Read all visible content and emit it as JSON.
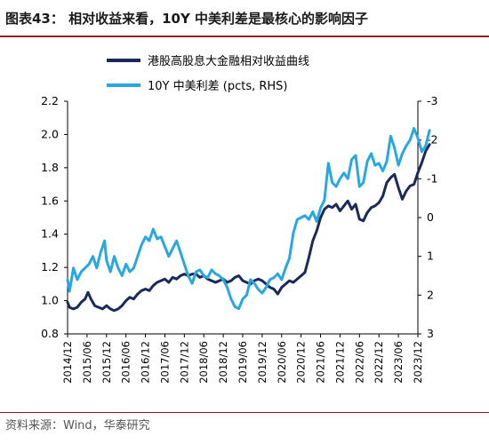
{
  "header": {
    "title": "图表43：  相对收益来看，10Y 中美利差是最核心的影响因子"
  },
  "footer": {
    "source": "资料来源：Wind，华泰研究"
  },
  "colors": {
    "accent": "#8c1b1b",
    "series_primary": "#1a2a5a",
    "series_secondary": "#29a8e0"
  },
  "chart_data": {
    "type": "line",
    "title": "",
    "xlabel": "",
    "ylabel": "",
    "x_tick_labels": [
      "2014/12",
      "2015/06",
      "2015/12",
      "2016/06",
      "2016/12",
      "2017/06",
      "2017/12",
      "2018/06",
      "2018/12",
      "2019/06",
      "2019/12",
      "2020/06",
      "2020/12",
      "2021/06",
      "2021/12",
      "2022/06",
      "2022/12",
      "2023/06",
      "2023/12"
    ],
    "y_left": {
      "lim": [
        0.8,
        2.2
      ],
      "ticks": [
        "0.8",
        "1.0",
        "1.2",
        "1.4",
        "1.6",
        "1.8",
        "2.0",
        "2.2"
      ]
    },
    "y_right": {
      "lim": [
        3,
        -3
      ],
      "inverted": true,
      "ticks": [
        "3",
        "2",
        "1",
        "0",
        "-1",
        "-2",
        "-3"
      ],
      "label": ""
    },
    "legend": {
      "placement": "top-center"
    },
    "grid": false,
    "series": [
      {
        "name": "港股高股息大金融相对收益曲线",
        "axis": "left",
        "color": "#1a2a5a",
        "x": [
          0.0,
          0.1,
          0.3,
          0.5,
          0.7,
          0.9,
          1.05,
          1.2,
          1.4,
          1.6,
          1.8,
          2.0,
          2.2,
          2.4,
          2.6,
          2.8,
          3.0,
          3.2,
          3.4,
          3.6,
          3.8,
          4.0,
          4.2,
          4.4,
          4.6,
          4.8,
          5.0,
          5.2,
          5.4,
          5.6,
          5.8,
          6.0,
          6.2,
          6.4,
          6.6,
          6.8,
          7.0,
          7.2,
          7.4,
          7.6,
          7.8,
          8.0,
          8.2,
          8.4,
          8.6,
          8.8,
          9.0,
          9.2,
          9.4,
          9.6,
          9.8,
          10.0,
          10.2,
          10.4,
          10.6,
          10.8,
          11.0,
          11.2,
          11.4,
          11.6,
          11.8,
          12.0,
          12.2,
          12.4,
          12.6,
          12.8,
          13.0,
          13.2,
          13.4,
          13.6,
          13.8,
          14.0,
          14.2,
          14.4,
          14.6,
          14.8,
          15.0,
          15.2,
          15.4,
          15.6,
          15.8,
          16.0,
          16.2,
          16.4,
          16.6,
          16.8,
          17.0,
          17.2,
          17.4,
          17.6,
          17.8,
          18.0,
          18.2,
          18.4,
          18.6
        ],
        "values": [
          0.99,
          0.96,
          0.95,
          0.96,
          0.99,
          1.01,
          1.05,
          1.01,
          0.97,
          0.96,
          0.95,
          0.97,
          0.95,
          0.94,
          0.95,
          0.97,
          1.0,
          1.02,
          1.01,
          1.04,
          1.06,
          1.07,
          1.06,
          1.09,
          1.11,
          1.12,
          1.13,
          1.11,
          1.14,
          1.13,
          1.15,
          1.16,
          1.15,
          1.16,
          1.16,
          1.14,
          1.15,
          1.13,
          1.12,
          1.11,
          1.12,
          1.13,
          1.11,
          1.12,
          1.14,
          1.15,
          1.12,
          1.11,
          1.1,
          1.12,
          1.13,
          1.12,
          1.1,
          1.08,
          1.07,
          1.04,
          1.08,
          1.1,
          1.12,
          1.11,
          1.13,
          1.15,
          1.17,
          1.26,
          1.36,
          1.42,
          1.5,
          1.55,
          1.57,
          1.56,
          1.58,
          1.54,
          1.57,
          1.6,
          1.55,
          1.58,
          1.49,
          1.48,
          1.53,
          1.56,
          1.57,
          1.59,
          1.63,
          1.71,
          1.74,
          1.76,
          1.68,
          1.61,
          1.66,
          1.69,
          1.7,
          1.77,
          1.83,
          1.9,
          1.94
        ]
      },
      {
        "name": "10Y 中美利差 (pcts, RHS)",
        "axis": "right",
        "color": "#29a8e0",
        "x": [
          0.0,
          0.1,
          0.3,
          0.5,
          0.7,
          0.9,
          1.1,
          1.3,
          1.5,
          1.7,
          1.9,
          2.0,
          2.2,
          2.4,
          2.6,
          2.8,
          3.0,
          3.2,
          3.4,
          3.6,
          3.8,
          4.0,
          4.2,
          4.4,
          4.6,
          4.8,
          5.0,
          5.2,
          5.4,
          5.6,
          5.8,
          6.0,
          6.2,
          6.4,
          6.6,
          6.8,
          7.0,
          7.2,
          7.4,
          7.6,
          7.8,
          8.0,
          8.2,
          8.4,
          8.6,
          8.8,
          9.0,
          9.2,
          9.4,
          9.6,
          9.8,
          10.0,
          10.2,
          10.4,
          10.6,
          10.8,
          11.0,
          11.2,
          11.4,
          11.6,
          11.8,
          12.0,
          12.2,
          12.4,
          12.6,
          12.8,
          13.0,
          13.2,
          13.4,
          13.6,
          13.8,
          14.0,
          14.2,
          14.4,
          14.6,
          14.8,
          15.0,
          15.2,
          15.4,
          15.6,
          15.8,
          16.0,
          16.2,
          16.4,
          16.6,
          16.8,
          17.0,
          17.2,
          17.4,
          17.6,
          17.8,
          18.0,
          18.2,
          18.4,
          18.6
        ],
        "values": [
          1.6,
          1.9,
          1.3,
          1.6,
          1.4,
          1.3,
          1.2,
          1.0,
          1.3,
          0.9,
          0.6,
          1.1,
          1.4,
          1.0,
          1.3,
          1.5,
          1.2,
          1.4,
          1.3,
          1.0,
          0.7,
          0.5,
          0.6,
          0.3,
          0.55,
          0.5,
          0.75,
          1.0,
          0.8,
          0.6,
          0.9,
          1.2,
          1.5,
          1.7,
          1.4,
          1.35,
          1.5,
          1.55,
          1.35,
          1.45,
          1.5,
          1.6,
          1.8,
          2.1,
          2.3,
          2.35,
          2.1,
          2.0,
          1.6,
          1.7,
          1.85,
          1.95,
          1.8,
          1.6,
          1.55,
          1.45,
          1.6,
          1.3,
          1.05,
          0.4,
          0.05,
          0.0,
          -0.05,
          0.05,
          -0.15,
          0.1,
          -0.25,
          -0.45,
          -1.4,
          -0.9,
          -0.8,
          -1.0,
          -1.15,
          -1.0,
          -1.5,
          -1.6,
          -0.8,
          -0.9,
          -1.45,
          -1.65,
          -1.35,
          -1.4,
          -1.2,
          -1.45,
          -2.1,
          -1.8,
          -1.35,
          -1.65,
          -1.85,
          -2.0,
          -2.3,
          -2.05,
          -1.7,
          -1.85,
          -2.25
        ]
      }
    ]
  }
}
